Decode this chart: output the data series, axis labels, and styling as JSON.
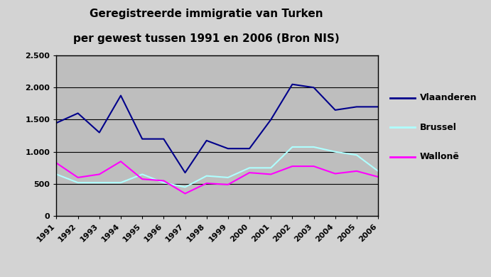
{
  "title_line1": "Geregistreerde immigratie van Turken",
  "title_line2": "per gewest tussen 1991 en 2006 (Bron NIS)",
  "years": [
    1991,
    1992,
    1993,
    1994,
    1995,
    1996,
    1997,
    1998,
    1999,
    2000,
    2001,
    2002,
    2003,
    2004,
    2005,
    2006
  ],
  "vlaanderen": [
    1450,
    1600,
    1300,
    1875,
    1200,
    1200,
    675,
    1175,
    1050,
    1050,
    1500,
    2050,
    2000,
    1650,
    1700,
    1700
  ],
  "brussel": [
    650,
    520,
    520,
    520,
    650,
    520,
    450,
    625,
    600,
    750,
    750,
    1075,
    1075,
    1000,
    950,
    700
  ],
  "wallonie": [
    825,
    600,
    650,
    850,
    575,
    550,
    350,
    510,
    490,
    675,
    650,
    775,
    775,
    660,
    700,
    610
  ],
  "color_vlaanderen": "#00008B",
  "color_brussel": "#AFFFFF",
  "color_wallonie": "#FF00FF",
  "ylim": [
    0,
    2500
  ],
  "yticks": [
    0,
    500,
    1000,
    1500,
    2000,
    2500
  ],
  "ytick_labels": [
    "0",
    "500",
    "1.000",
    "1.500",
    "2.000",
    "2.500"
  ],
  "plot_bg_color": "#BEBEBE",
  "outer_bg_color": "#D3D3D3",
  "legend_labels": [
    "Vlaanderen",
    "Brussel",
    "Wallonë"
  ],
  "title_fontsize": 11,
  "tick_fontsize": 8,
  "legend_fontsize": 9
}
